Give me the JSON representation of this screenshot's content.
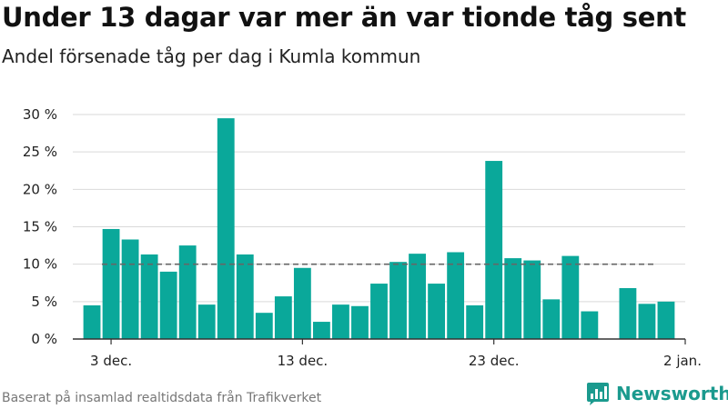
{
  "title": "Under 13 dagar var mer än var tionde tåg sent",
  "subtitle": "Andel försenade tåg per dag i Kumla kommun",
  "footer": "Baserat på insamlad realtidsdata från Trafikverket",
  "brand": {
    "name": "Newsworthy",
    "icon": "bar-chart-logo-icon",
    "color": "#1b9a8e"
  },
  "colors": {
    "bar": "#0aa89a",
    "grid": "#d9d9d9",
    "reference": "#666666",
    "axis": "#333333"
  },
  "chart_data": {
    "type": "bar",
    "x_unit": "day",
    "x": [
      "2023-12-02",
      "2023-12-03",
      "2023-12-04",
      "2023-12-05",
      "2023-12-06",
      "2023-12-07",
      "2023-12-08",
      "2023-12-09",
      "2023-12-10",
      "2023-12-11",
      "2023-12-12",
      "2023-12-13",
      "2023-12-14",
      "2023-12-15",
      "2023-12-16",
      "2023-12-17",
      "2023-12-18",
      "2023-12-19",
      "2023-12-20",
      "2023-12-21",
      "2023-12-22",
      "2023-12-23",
      "2023-12-24",
      "2023-12-25",
      "2023-12-26",
      "2023-12-27",
      "2023-12-28",
      "2023-12-29",
      "2023-12-30",
      "2023-12-31",
      "2024-01-01"
    ],
    "values": [
      4.5,
      14.7,
      13.3,
      11.3,
      9.0,
      12.5,
      4.6,
      29.5,
      11.3,
      3.5,
      5.7,
      9.5,
      2.3,
      4.6,
      4.4,
      7.4,
      10.3,
      11.4,
      7.4,
      11.6,
      4.5,
      23.8,
      10.8,
      10.5,
      5.3,
      11.1,
      3.7,
      null,
      6.8,
      4.7,
      5.0
    ],
    "ylim": [
      0,
      30
    ],
    "yticks": [
      0,
      5,
      10,
      15,
      20,
      25,
      30
    ],
    "ytick_labels": [
      "0 %",
      "5 %",
      "10 %",
      "15 %",
      "20 %",
      "25 %",
      "30 %"
    ],
    "xticks": [
      "2023-12-03",
      "2023-12-13",
      "2023-12-23",
      "2024-01-02"
    ],
    "xtick_labels": [
      "3 dec.",
      "13 dec.",
      "23 dec.",
      "2 jan."
    ],
    "xlim": [
      "2023-12-01",
      "2024-01-02"
    ],
    "reference_line": {
      "value": 10,
      "style": "dashed"
    },
    "grid": true,
    "legend": false
  }
}
